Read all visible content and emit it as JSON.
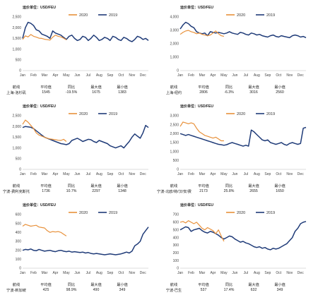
{
  "stat_headers": [
    "航线",
    "平均值",
    "同比",
    "最大值",
    "最小值"
  ],
  "chart_data": [
    {
      "type": "line",
      "unit_label": "运价单位：USD/FEU",
      "x_ticks": [
        "Jan",
        "Feb",
        "Mar",
        "Apr",
        "May",
        "Jun",
        "Jul",
        "Aug",
        "Sep",
        "Oct",
        "Nov",
        "Dec"
      ],
      "ylim": [
        0,
        2500
      ],
      "y_ticks": [
        0,
        500,
        1000,
        1500,
        2000,
        2500
      ],
      "y_tick_labels": [
        "0",
        "500",
        "1,000",
        "1,500",
        "2,000",
        "2,500"
      ],
      "grid": false,
      "legend_position": "top-center",
      "series": [
        {
          "name": "2020",
          "color": "#e8913b",
          "x": [
            1,
            1.25,
            1.5,
            1.75,
            2,
            2.25,
            2.5,
            2.75,
            3,
            3.25,
            3.5,
            3.75,
            4,
            4.25,
            4.5,
            4.75,
            5
          ],
          "values": [
            1450,
            1620,
            1570,
            1680,
            1600,
            1560,
            1510,
            1500,
            1460,
            1440,
            1420,
            1560,
            1650,
            1600,
            1570,
            1510,
            1430
          ]
        },
        {
          "name": "2019",
          "color": "#1f3b78",
          "x": [
            1,
            1.25,
            1.5,
            1.75,
            2,
            2.25,
            2.5,
            2.75,
            3,
            3.25,
            3.5,
            3.75,
            4,
            4.25,
            4.5,
            4.75,
            5,
            5.25,
            5.5,
            5.75,
            6,
            6.25,
            6.5,
            6.75,
            7,
            7.25,
            7.5,
            7.75,
            8,
            8.25,
            8.5,
            8.75,
            9,
            9.25,
            9.5,
            9.75,
            10,
            10.25,
            10.5,
            10.75,
            11,
            11.25,
            11.5,
            11.75,
            12,
            12.25,
            12.5
          ],
          "values": [
            1500,
            2000,
            2250,
            2200,
            2100,
            1900,
            1850,
            1700,
            1650,
            1600,
            1500,
            1850,
            1750,
            1700,
            1650,
            1550,
            1450,
            1600,
            1650,
            1500,
            1400,
            1450,
            1600,
            1550,
            1400,
            1500,
            1650,
            1550,
            1400,
            1450,
            1550,
            1500,
            1400,
            1600,
            1550,
            1450,
            1400,
            1550,
            1500,
            1400,
            1350,
            1450,
            1600,
            1550,
            1450,
            1500,
            1400
          ]
        }
      ],
      "stats": [
        "上海-洛杉矶",
        "1545",
        "-19.5%",
        "1675",
        "1383"
      ]
    },
    {
      "type": "line",
      "unit_label": "运价单位：USD/FEU",
      "x_ticks": [
        "Jan",
        "Feb",
        "Mar",
        "Apr",
        "May",
        "Jun",
        "Jul",
        "Aug",
        "Sep",
        "Oct",
        "Nov",
        "Dec"
      ],
      "ylim": [
        0,
        4000
      ],
      "y_ticks": [
        0,
        1000,
        2000,
        3000,
        4000
      ],
      "y_tick_labels": [
        "0",
        "1,000",
        "2,000",
        "3,000",
        "4,000"
      ],
      "grid": false,
      "legend_position": "top-center",
      "series": [
        {
          "name": "2020",
          "color": "#e8913b",
          "x": [
            1,
            1.25,
            1.5,
            1.75,
            2,
            2.25,
            2.5,
            2.75,
            3,
            3.25,
            3.5,
            3.75,
            4,
            4.25,
            4.5,
            4.75,
            5
          ],
          "values": [
            2700,
            2850,
            2950,
            3000,
            2900,
            2850,
            2750,
            2800,
            2700,
            2650,
            2600,
            2650,
            2800,
            2950,
            2750,
            2600,
            2550
          ]
        },
        {
          "name": "2019",
          "color": "#1f3b78",
          "x": [
            1,
            1.25,
            1.5,
            1.75,
            2,
            2.25,
            2.5,
            2.75,
            3,
            3.25,
            3.5,
            3.75,
            4,
            4.25,
            4.5,
            4.75,
            5,
            5.25,
            5.5,
            5.75,
            6,
            6.25,
            6.5,
            6.75,
            7,
            7.25,
            7.5,
            7.75,
            8,
            8.25,
            8.5,
            8.75,
            9,
            9.25,
            9.5,
            9.75,
            10,
            10.25,
            10.5,
            10.75,
            11,
            11.25,
            11.5,
            11.75,
            12,
            12.25,
            12.5
          ],
          "values": [
            3100,
            3400,
            3600,
            3500,
            3300,
            3200,
            2900,
            2800,
            2750,
            2800,
            2600,
            2900,
            2850,
            2800,
            2850,
            2800,
            2750,
            2800,
            2900,
            2800,
            2750,
            2700,
            2850,
            2800,
            2700,
            2650,
            2800,
            2750,
            2650,
            2700,
            2600,
            2550,
            2500,
            2600,
            2650,
            2550,
            2500,
            2600,
            2550,
            2500,
            2450,
            2600,
            2650,
            2600,
            2500,
            2550,
            2450
          ]
        }
      ],
      "stats": [
        "上海-纽约",
        "2806",
        "-6.3%",
        "3016",
        "2560"
      ]
    },
    {
      "type": "line",
      "unit_label": "运价单位：USD/FEU",
      "x_ticks": [
        "Jan",
        "Feb",
        "Mar",
        "Apr",
        "May",
        "Jun",
        "Jul",
        "Aug",
        "Sep",
        "Oct",
        "Nov",
        "Dec"
      ],
      "ylim": [
        0,
        2500
      ],
      "y_ticks": [
        0,
        500,
        1000,
        1500,
        2000,
        2500
      ],
      "y_tick_labels": [
        "0",
        "500",
        "1,000",
        "1,500",
        "2,000",
        "2,500"
      ],
      "grid": false,
      "legend_position": "top-center",
      "series": [
        {
          "name": "2020",
          "color": "#e8913b",
          "x": [
            1,
            1.25,
            1.5,
            1.75,
            2,
            2.25,
            2.5,
            2.75,
            3,
            3.25,
            3.5,
            3.75,
            4,
            4.25,
            4.5,
            4.75,
            5
          ],
          "values": [
            2100,
            2300,
            2200,
            2050,
            1900,
            1700,
            1600,
            1550,
            1500,
            1450,
            1420,
            1400,
            1380,
            1360,
            1350,
            1400,
            1300
          ]
        },
        {
          "name": "2019",
          "color": "#1f3b78",
          "x": [
            1,
            1.25,
            1.5,
            1.75,
            2,
            2.25,
            2.5,
            2.75,
            3,
            3.25,
            3.5,
            3.75,
            4,
            4.25,
            4.5,
            4.75,
            5,
            5.25,
            5.5,
            5.75,
            6,
            6.25,
            6.5,
            6.75,
            7,
            7.25,
            7.5,
            7.75,
            8,
            8.25,
            8.5,
            8.75,
            9,
            9.25,
            9.5,
            9.75,
            10,
            10.25,
            10.5,
            10.75,
            11,
            11.25,
            11.5,
            11.75,
            12,
            12.25,
            12.5
          ],
          "values": [
            1950,
            2000,
            1980,
            1960,
            1900,
            1800,
            1700,
            1600,
            1500,
            1450,
            1400,
            1350,
            1300,
            1250,
            1200,
            1180,
            1150,
            1200,
            1350,
            1400,
            1450,
            1380,
            1300,
            1350,
            1400,
            1380,
            1300,
            1250,
            1350,
            1300,
            1250,
            1200,
            1100,
            1050,
            1000,
            1050,
            1100,
            1000,
            1150,
            1300,
            1500,
            1650,
            1550,
            1450,
            1700,
            2050,
            1950
          ]
        }
      ],
      "stats": [
        "宁波-费利克斯托",
        "1736",
        "10.7%",
        "2297",
        "1348"
      ]
    },
    {
      "type": "line",
      "unit_label": "运价单位：USD/FEU",
      "x_ticks": [
        "Jan",
        "Feb",
        "Mar",
        "Apr",
        "May",
        "Jun",
        "Jul",
        "Aug",
        "Sep",
        "Oct",
        "Nov",
        "Dec"
      ],
      "ylim": [
        0,
        3000
      ],
      "y_ticks": [
        0,
        500,
        1000,
        1500,
        2000,
        2500,
        3000
      ],
      "y_tick_labels": [
        "0",
        "500",
        "1,000",
        "1,500",
        "2,000",
        "2,500",
        "3,000"
      ],
      "grid": false,
      "legend_position": "top-center",
      "series": [
        {
          "name": "2020",
          "color": "#e8913b",
          "x": [
            1,
            1.25,
            1.5,
            1.75,
            2,
            2.25,
            2.5,
            2.75,
            3,
            3.25,
            3.5,
            3.75,
            4,
            4.25,
            4.5,
            4.75,
            5
          ],
          "values": [
            2400,
            2650,
            2600,
            2550,
            2600,
            2550,
            2300,
            2100,
            2000,
            1900,
            1850,
            1800,
            1750,
            1800,
            1700,
            1600,
            1600
          ]
        },
        {
          "name": "2019",
          "color": "#1f3b78",
          "x": [
            1,
            1.25,
            1.5,
            1.75,
            2,
            2.25,
            2.5,
            2.75,
            3,
            3.25,
            3.5,
            3.75,
            4,
            4.25,
            4.5,
            4.75,
            5,
            5.25,
            5.5,
            5.75,
            6,
            6.25,
            6.5,
            6.75,
            7,
            7.25,
            7.5,
            7.75,
            8,
            8.25,
            8.5,
            8.75,
            9,
            9.25,
            9.5,
            9.75,
            10,
            10.25,
            10.5,
            10.75,
            11,
            11.25,
            11.5,
            11.75,
            12,
            12.25,
            12.5
          ],
          "values": [
            2000,
            1950,
            1900,
            1950,
            1900,
            1850,
            1800,
            1750,
            1700,
            1650,
            1600,
            1550,
            1500,
            1450,
            1400,
            1380,
            1350,
            1380,
            1450,
            1500,
            1450,
            1400,
            1350,
            1300,
            1350,
            1300,
            2200,
            2100,
            1950,
            1800,
            1650,
            1600,
            1650,
            1500,
            1450,
            1400,
            1450,
            1500,
            1400,
            1350,
            1450,
            1500,
            1450,
            1400,
            1450,
            2300,
            2350
          ]
        }
      ],
      "stats": [
        "宁波-北欧/荷/汉/安/费",
        "2173",
        "25.8%",
        "2655",
        "1650"
      ]
    },
    {
      "type": "line",
      "unit_label": "运价单位：USD/FEU",
      "x_ticks": [
        "Jan",
        "Feb",
        "Mar",
        "Apr",
        "May",
        "Jun",
        "Jul",
        "Aug",
        "Sep",
        "Oct",
        "Nov",
        "Dec"
      ],
      "ylim": [
        0,
        600
      ],
      "y_ticks": [
        0,
        100,
        200,
        300,
        400,
        500,
        600
      ],
      "y_tick_labels": [
        "0",
        "100",
        "200",
        "300",
        "400",
        "500",
        "600"
      ],
      "grid": false,
      "legend_position": "top-center",
      "series": [
        {
          "name": "2020",
          "color": "#e8913b",
          "x": [
            1,
            1.25,
            1.5,
            1.75,
            2,
            2.25,
            2.5,
            2.75,
            3,
            3.25,
            3.5,
            3.75,
            4,
            4.25,
            4.5,
            4.75,
            5
          ],
          "values": [
            470,
            490,
            480,
            470,
            475,
            480,
            460,
            455,
            450,
            420,
            400,
            410,
            405,
            410,
            400,
            380,
            360
          ]
        },
        {
          "name": "2019",
          "color": "#1f3b78",
          "x": [
            1,
            1.25,
            1.5,
            1.75,
            2,
            2.25,
            2.5,
            2.75,
            3,
            3.25,
            3.5,
            3.75,
            4,
            4.25,
            4.5,
            4.75,
            5,
            5.25,
            5.5,
            5.75,
            6,
            6.25,
            6.5,
            6.75,
            7,
            7.25,
            7.5,
            7.75,
            8,
            8.25,
            8.5,
            8.75,
            9,
            9.25,
            9.5,
            9.75,
            10,
            10.25,
            10.5,
            10.75,
            11,
            11.25,
            11.5,
            11.75,
            12,
            12.25,
            12.5
          ],
          "values": [
            200,
            210,
            205,
            215,
            200,
            195,
            210,
            200,
            190,
            195,
            200,
            190,
            185,
            195,
            200,
            190,
            185,
            190,
            180,
            185,
            180,
            175,
            180,
            170,
            175,
            165,
            160,
            165,
            160,
            155,
            150,
            155,
            160,
            155,
            150,
            155,
            160,
            170,
            180,
            170,
            190,
            250,
            270,
            300,
            380,
            420,
            460
          ]
        }
      ],
      "stats": [
        "宁波-新加坡",
        "425",
        "98.9%",
        "490",
        "349"
      ]
    },
    {
      "type": "line",
      "unit_label": "运价单位：USD/FEU",
      "x_ticks": [
        "Jan",
        "Feb",
        "Mar",
        "Apr",
        "May",
        "Jun",
        "Jul",
        "Aug",
        "Sep",
        "Oct",
        "Nov",
        "Dec"
      ],
      "ylim": [
        0,
        700
      ],
      "y_ticks": [
        0,
        100,
        200,
        300,
        400,
        500,
        600,
        700
      ],
      "y_tick_labels": [
        "0",
        "100",
        "200",
        "300",
        "400",
        "500",
        "600",
        "700"
      ],
      "grid": false,
      "legend_position": "top-center",
      "series": [
        {
          "name": "2020",
          "color": "#e8913b",
          "x": [
            1,
            1.25,
            1.5,
            1.75,
            2,
            2.25,
            2.5,
            2.75,
            3,
            3.25,
            3.5,
            3.75,
            4,
            4.25,
            4.5,
            4.75,
            5
          ],
          "values": [
            600,
            610,
            590,
            620,
            600,
            580,
            600,
            560,
            520,
            500,
            530,
            510,
            490,
            450,
            500,
            420,
            350
          ]
        },
        {
          "name": "2019",
          "color": "#1f3b78",
          "x": [
            1,
            1.25,
            1.5,
            1.75,
            2,
            2.25,
            2.5,
            2.75,
            3,
            3.25,
            3.5,
            3.75,
            4,
            4.25,
            4.5,
            4.75,
            5,
            5.25,
            5.5,
            5.75,
            6,
            6.25,
            6.5,
            6.75,
            7,
            7.25,
            7.5,
            7.75,
            8,
            8.25,
            8.5,
            8.75,
            9,
            9.25,
            9.5,
            9.75,
            10,
            10.25,
            10.5,
            10.75,
            11,
            11.25,
            11.5,
            11.75,
            12,
            12.25,
            12.5
          ],
          "values": [
            500,
            520,
            540,
            530,
            480,
            500,
            510,
            520,
            490,
            470,
            460,
            480,
            470,
            450,
            430,
            400,
            380,
            400,
            420,
            410,
            380,
            360,
            340,
            350,
            330,
            320,
            300,
            280,
            270,
            280,
            260,
            270,
            250,
            240,
            260,
            250,
            260,
            280,
            300,
            320,
            360,
            400,
            480,
            520,
            580,
            600,
            610
          ]
        }
      ],
      "stats": [
        "宁波-巴生",
        "537",
        "17.4%",
        "632",
        "349"
      ]
    }
  ]
}
